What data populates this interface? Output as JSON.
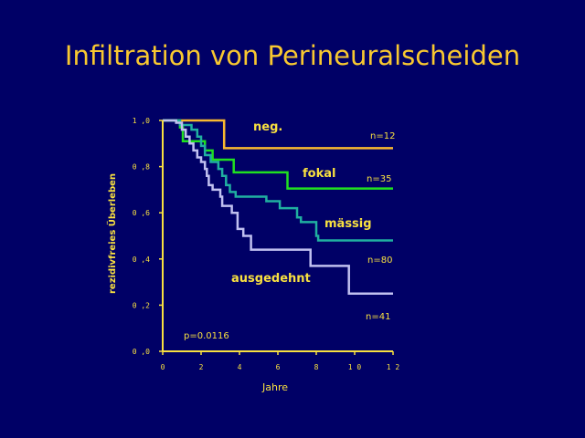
{
  "chart_data": {
    "type": "line",
    "step": true,
    "title": "Infiltration von Perineuralscheiden",
    "xlabel": "Jahre",
    "ylabel": "rezidivfreies Überleben",
    "xlim": [
      0,
      12
    ],
    "ylim": [
      0,
      1
    ],
    "xticks": [
      0,
      2,
      4,
      6,
      8,
      10,
      12
    ],
    "xtick_labels": [
      "0",
      "2",
      "4",
      "6",
      "8",
      "1 0",
      "1 2"
    ],
    "yticks": [
      0,
      0.2,
      0.4,
      0.6,
      0.8,
      1.0
    ],
    "ytick_labels": [
      "0 ,0",
      "0 ,2",
      "0 ,4",
      "0 ,6",
      "0 ,8",
      "1 ,0"
    ],
    "grid": false,
    "annotation": "p=0.0116",
    "series": [
      {
        "name": "neg.",
        "n_label": "n=12",
        "color": "#f8b830",
        "x": [
          0,
          3.2,
          12
        ],
        "y": [
          1.0,
          0.88,
          0.88
        ]
      },
      {
        "name": "fokal",
        "n_label": "n=35",
        "color": "#20e020",
        "x": [
          0,
          0.9,
          1.05,
          2.2,
          2.6,
          3.7,
          6.5,
          12
        ],
        "y": [
          1.0,
          0.97,
          0.91,
          0.87,
          0.83,
          0.775,
          0.705,
          0.705
        ]
      },
      {
        "name": "mässig",
        "n_label": "n=80",
        "color": "#20b0a0",
        "x": [
          0,
          0.9,
          1.5,
          1.8,
          2.0,
          2.2,
          2.5,
          2.9,
          3.1,
          3.3,
          3.5,
          3.8,
          5.4,
          6.1,
          7.0,
          7.2,
          8.0,
          8.1,
          12
        ],
        "y": [
          1.0,
          0.98,
          0.96,
          0.93,
          0.89,
          0.85,
          0.82,
          0.79,
          0.76,
          0.72,
          0.69,
          0.67,
          0.65,
          0.62,
          0.58,
          0.56,
          0.5,
          0.48,
          0.48
        ]
      },
      {
        "name": "ausgedehnt",
        "n_label": "n=41",
        "color": "#c0c0f0",
        "x": [
          0,
          0.7,
          1.0,
          1.2,
          1.4,
          1.6,
          1.8,
          2.0,
          2.2,
          2.3,
          2.4,
          2.6,
          3.0,
          3.1,
          3.6,
          3.9,
          4.2,
          4.6,
          7.7,
          9.7,
          12
        ],
        "y": [
          1.0,
          0.99,
          0.96,
          0.93,
          0.9,
          0.87,
          0.84,
          0.82,
          0.79,
          0.76,
          0.72,
          0.7,
          0.67,
          0.63,
          0.6,
          0.53,
          0.5,
          0.44,
          0.37,
          0.25,
          0.25
        ]
      }
    ]
  },
  "colors": {
    "background": "#000066",
    "title": "#f8c830",
    "axis": "#f8e040"
  }
}
